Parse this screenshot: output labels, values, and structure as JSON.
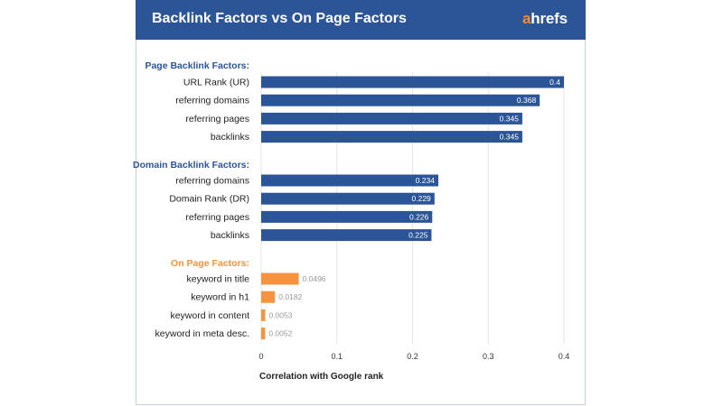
{
  "header": {
    "title": "Backlink Factors vs On Page Factors",
    "logo_accent": "a",
    "logo_rest": "hrefs"
  },
  "colors": {
    "header_bg": "#2c5597",
    "bar_blue": "#2c5597",
    "bar_orange": "#f7923e",
    "group_blue": "#2c5597",
    "group_orange": "#f7923e"
  },
  "chart_data": {
    "type": "bar",
    "orientation": "horizontal",
    "xlabel": "Correlation with Google rank",
    "xlim": [
      0,
      0.4
    ],
    "xticks": [
      "0",
      "0.1",
      "0.2",
      "0.3",
      "0.4"
    ],
    "xtick_values": [
      0,
      0.1,
      0.2,
      0.3,
      0.4
    ],
    "grid": true,
    "groups": [
      {
        "name": "Page Backlink Factors:",
        "color": "#2c5597",
        "categories": [
          "URL Rank (UR)",
          "referring domains",
          "referring pages",
          "backlinks"
        ],
        "values": [
          0.4,
          0.368,
          0.345,
          0.345
        ],
        "labels": [
          "0.4",
          "0.368",
          "0.345",
          "0.345"
        ]
      },
      {
        "name": "Domain Backlink Factors:",
        "color": "#2c5597",
        "categories": [
          "referring domains",
          "Domain Rank (DR)",
          "referring pages",
          "backlinks"
        ],
        "values": [
          0.234,
          0.229,
          0.226,
          0.225
        ],
        "labels": [
          "0.234",
          "0.229",
          "0.226",
          "0.225"
        ]
      },
      {
        "name": "On Page Factors:",
        "color": "#f7923e",
        "categories": [
          "keyword in title",
          "keyword in h1",
          "keyword in content",
          "keyword in meta desc."
        ],
        "values": [
          0.0496,
          0.0182,
          0.0053,
          0.0052
        ],
        "labels": [
          "0.0496",
          "0.0182",
          "0.0053",
          "0.0052"
        ]
      }
    ]
  }
}
